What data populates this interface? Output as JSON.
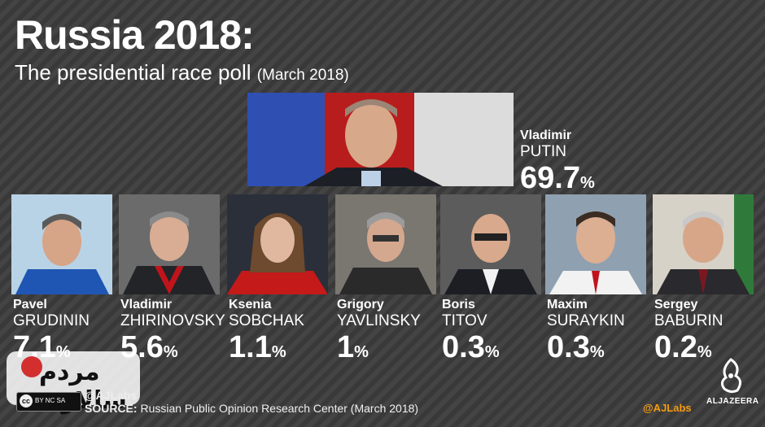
{
  "header": {
    "title": "Russia 2018:",
    "subtitle": "The presidential race poll",
    "subtitle_date": "(March 2018)"
  },
  "chart_data": {
    "type": "table",
    "candidates": [
      {
        "first_name": "Vladimir",
        "last_name": "PUTIN",
        "value": 69.7
      },
      {
        "first_name": "Pavel",
        "last_name": "GRUDININ",
        "value": 7.1
      },
      {
        "first_name": "Vladimir",
        "last_name": "ZHIRINOVSKY",
        "value": 5.6
      },
      {
        "first_name": "Ksenia",
        "last_name": "SOBCHAK",
        "value": 1.1
      },
      {
        "first_name": "Grigory",
        "last_name": "YAVLINSKY",
        "value": 1
      },
      {
        "first_name": "Boris",
        "last_name": "TITOV",
        "value": 0.3
      },
      {
        "first_name": "Maxim",
        "last_name": "SURAYKIN",
        "value": 0.3
      },
      {
        "first_name": "Sergey",
        "last_name": "BABURIN",
        "value": 0.2
      }
    ],
    "unit": "%"
  },
  "footer": {
    "source_label": "SOURCE:",
    "source_text": "Russian Public Opinion Research Center (March 2018)",
    "handle_left": "@AJLabs",
    "handle_right": "@AJLabs",
    "logo_text": "ALJAZEERA",
    "license": "BY NC SA",
    "license_mark": "cc"
  },
  "watermark": {
    "text": "مردم سالاری",
    "badge": "آنلاین"
  },
  "colors": {
    "background": "#3e3e3e",
    "accent": "#f39c12",
    "text": "#ffffff"
  }
}
